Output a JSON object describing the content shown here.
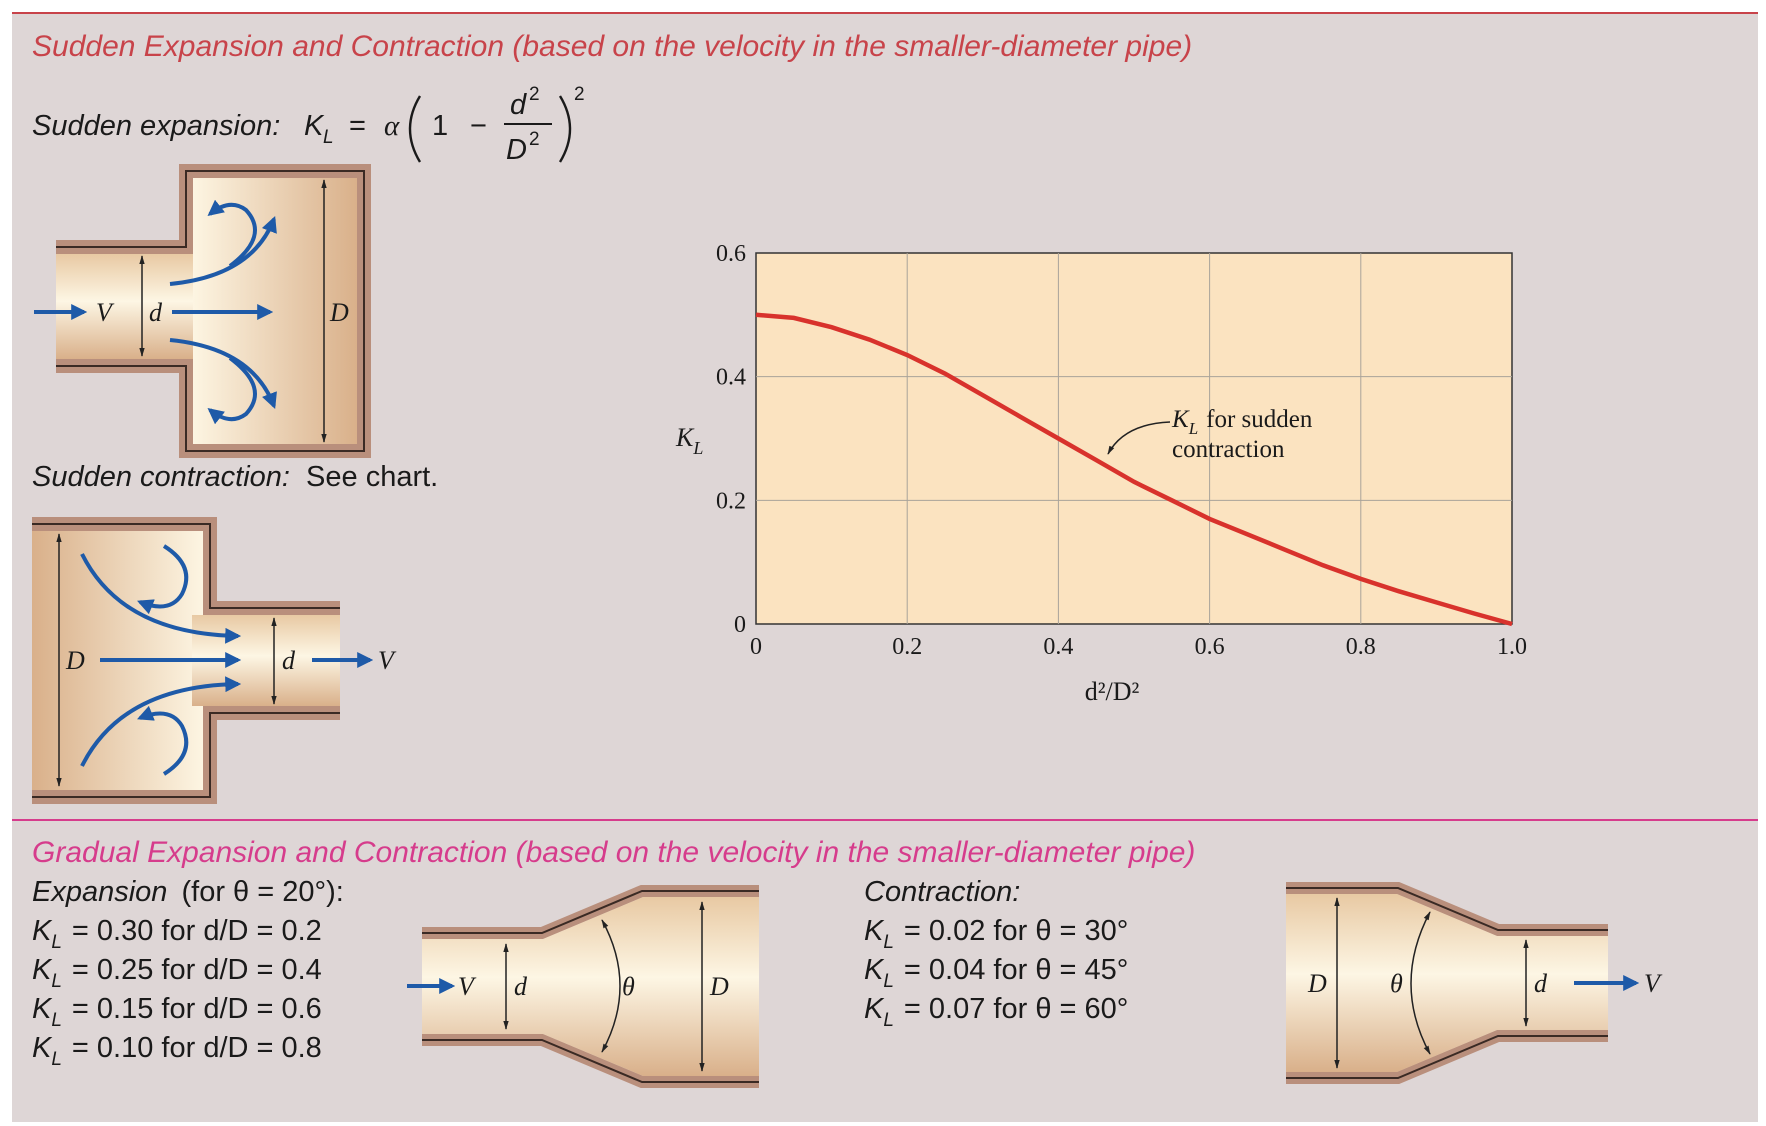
{
  "sections": {
    "sudden": {
      "title": "Sudden Expansion and Contraction (based on the velocity in the smaller-diameter pipe)",
      "expansion_label": "Sudden expansion:",
      "formula": {
        "lhs": "K",
        "sub": "L",
        "eq": "=",
        "coef": "α",
        "one": "1",
        "minus": "−",
        "num": "d",
        "den": "D",
        "exp": "2"
      },
      "contraction_label": "Sudden contraction:",
      "contraction_note": "See chart."
    },
    "gradual": {
      "title": "Gradual Expansion and Contraction (based on the velocity in the smaller-diameter pipe)",
      "expansion_title": "Expansion",
      "expansion_cond": "(for θ = 20°):",
      "expansion_rows": [
        {
          "k": "K",
          "sub": "L",
          "text": "= 0.30 for d/D = 0.2"
        },
        {
          "k": "K",
          "sub": "L",
          "text": "= 0.25 for d/D = 0.4"
        },
        {
          "k": "K",
          "sub": "L",
          "text": "= 0.15 for d/D = 0.6"
        },
        {
          "k": "K",
          "sub": "L",
          "text": "= 0.10 for d/D = 0.8"
        }
      ],
      "contraction_title": "Contraction:",
      "contraction_rows": [
        {
          "k": "K",
          "sub": "L",
          "text": "= 0.02 for θ = 30°"
        },
        {
          "k": "K",
          "sub": "L",
          "text": "= 0.04 for θ = 45°"
        },
        {
          "k": "K",
          "sub": "L",
          "text": "= 0.07 for θ = 60°"
        }
      ]
    }
  },
  "diagram_labels": {
    "velocity": "V",
    "small_d": "d",
    "large_d": "D",
    "angle": "θ"
  },
  "chart_data": {
    "type": "line",
    "xlabel": "d²/D²",
    "ylabel": "K",
    "ylabel_sub": "L",
    "xlim": [
      0,
      1.0
    ],
    "ylim": [
      0,
      0.6
    ],
    "xticks": [
      "0",
      "0.2",
      "0.4",
      "0.6",
      "0.8",
      "1.0"
    ],
    "yticks": [
      "0",
      "0.2",
      "0.4",
      "0.6"
    ],
    "grid": true,
    "series": [
      {
        "name": "K_L for sudden contraction",
        "x": [
          0,
          0.05,
          0.1,
          0.15,
          0.2,
          0.25,
          0.3,
          0.35,
          0.4,
          0.45,
          0.5,
          0.55,
          0.6,
          0.65,
          0.7,
          0.75,
          0.8,
          0.85,
          0.9,
          0.95,
          1.0
        ],
        "y": [
          0.5,
          0.495,
          0.48,
          0.46,
          0.435,
          0.405,
          0.37,
          0.335,
          0.3,
          0.265,
          0.23,
          0.2,
          0.17,
          0.145,
          0.12,
          0.095,
          0.073,
          0.053,
          0.035,
          0.017,
          0.0
        ],
        "color": "#d8322c"
      }
    ],
    "annotation": {
      "k": "K",
      "sub": "L",
      "line1": "for sudden",
      "line2": "contraction"
    }
  },
  "colors": {
    "heading_red": "#c8434a",
    "heading_pink": "#d63c8c",
    "panel_bg": "#ded6d6",
    "chart_bg": "#fbe3c0",
    "curve": "#d8322c",
    "arrow_blue": "#1e5aa8",
    "pipe_wall": "#c9a593"
  }
}
